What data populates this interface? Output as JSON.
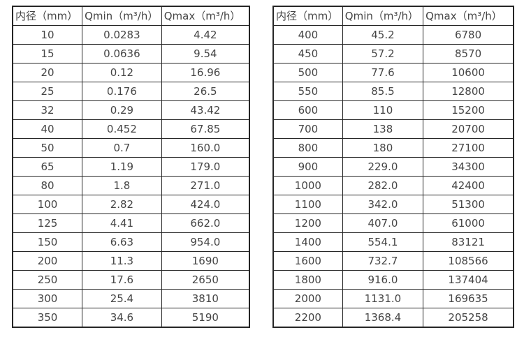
{
  "page": {
    "background_color": "#ffffff",
    "border_color": "#262626",
    "text_color": "#454545"
  },
  "tables": {
    "left": {
      "title": "flow-rate-spec-small-diameters",
      "headers": [
        "内径（mm）",
        "Qmin（m³/h）",
        "Qmax（m³/h）"
      ],
      "rows": [
        [
          "10",
          "0.0283",
          "4.42"
        ],
        [
          "15",
          "0.0636",
          "9.54"
        ],
        [
          "20",
          "0.12",
          "16.96"
        ],
        [
          "25",
          "0.176",
          "26.5"
        ],
        [
          "32",
          "0.29",
          "43.42"
        ],
        [
          "40",
          "0.452",
          "67.85"
        ],
        [
          "50",
          "0.7",
          "160.0"
        ],
        [
          "65",
          "1.19",
          "179.0"
        ],
        [
          "80",
          "1.8",
          "271.0"
        ],
        [
          "100",
          "2.82",
          "424.0"
        ],
        [
          "125",
          "4.41",
          "662.0"
        ],
        [
          "150",
          "6.63",
          "954.0"
        ],
        [
          "200",
          "11.3",
          "1690"
        ],
        [
          "250",
          "17.6",
          "2650"
        ],
        [
          "300",
          "25.4",
          "3810"
        ],
        [
          "350",
          "34.6",
          "5190"
        ]
      ]
    },
    "right": {
      "title": "flow-rate-spec-large-diameters",
      "headers": [
        "内径（mm）",
        "Qmin（m³/h）",
        "Qmax（m³/h）"
      ],
      "rows": [
        [
          "400",
          "45.2",
          "6780"
        ],
        [
          "450",
          "57.2",
          "8570"
        ],
        [
          "500",
          "77.6",
          "10600"
        ],
        [
          "550",
          "85.5",
          "12800"
        ],
        [
          "600",
          "110",
          "15200"
        ],
        [
          "700",
          "138",
          "20700"
        ],
        [
          "800",
          "180",
          "27100"
        ],
        [
          "900",
          "229.0",
          "34300"
        ],
        [
          "1000",
          "282.0",
          "42400"
        ],
        [
          "1100",
          "342.0",
          "51300"
        ],
        [
          "1200",
          "407.0",
          "61000"
        ],
        [
          "1400",
          "554.1",
          "83121"
        ],
        [
          "1600",
          "732.7",
          "108566"
        ],
        [
          "1800",
          "916.0",
          "137404"
        ],
        [
          "2000",
          "1131.0",
          "169635"
        ],
        [
          "2200",
          "1368.4",
          "205258"
        ]
      ]
    }
  },
  "chart_data": [
    {
      "type": "table",
      "title": "内径（mm）/ Qmin（m³/h）/ Qmax（m³/h）",
      "columns": [
        "内径（mm）",
        "Qmin（m³/h）",
        "Qmax（m³/h）"
      ],
      "rows": [
        [
          10,
          0.0283,
          4.42
        ],
        [
          15,
          0.0636,
          9.54
        ],
        [
          20,
          0.12,
          16.96
        ],
        [
          25,
          0.176,
          26.5
        ],
        [
          32,
          0.29,
          43.42
        ],
        [
          40,
          0.452,
          67.85
        ],
        [
          50,
          0.7,
          160.0
        ],
        [
          65,
          1.19,
          179.0
        ],
        [
          80,
          1.8,
          271.0
        ],
        [
          100,
          2.82,
          424.0
        ],
        [
          125,
          4.41,
          662.0
        ],
        [
          150,
          6.63,
          954.0
        ],
        [
          200,
          11.3,
          1690
        ],
        [
          250,
          17.6,
          2650
        ],
        [
          300,
          25.4,
          3810
        ],
        [
          350,
          34.6,
          5190
        ]
      ]
    },
    {
      "type": "table",
      "title": "内径（mm）/ Qmin（m³/h）/ Qmax（m³/h）",
      "columns": [
        "内径（mm）",
        "Qmin（m³/h）",
        "Qmax（m³/h）"
      ],
      "rows": [
        [
          400,
          45.2,
          6780
        ],
        [
          450,
          57.2,
          8570
        ],
        [
          500,
          77.6,
          10600
        ],
        [
          550,
          85.5,
          12800
        ],
        [
          600,
          110,
          15200
        ],
        [
          700,
          138,
          20700
        ],
        [
          800,
          180,
          27100
        ],
        [
          900,
          229.0,
          34300
        ],
        [
          1000,
          282.0,
          42400
        ],
        [
          1100,
          342.0,
          51300
        ],
        [
          1200,
          407.0,
          61000
        ],
        [
          1400,
          554.1,
          83121
        ],
        [
          1600,
          732.7,
          108566
        ],
        [
          1800,
          916.0,
          137404
        ],
        [
          2000,
          1131.0,
          169635
        ],
        [
          2200,
          1368.4,
          205258
        ]
      ]
    }
  ]
}
